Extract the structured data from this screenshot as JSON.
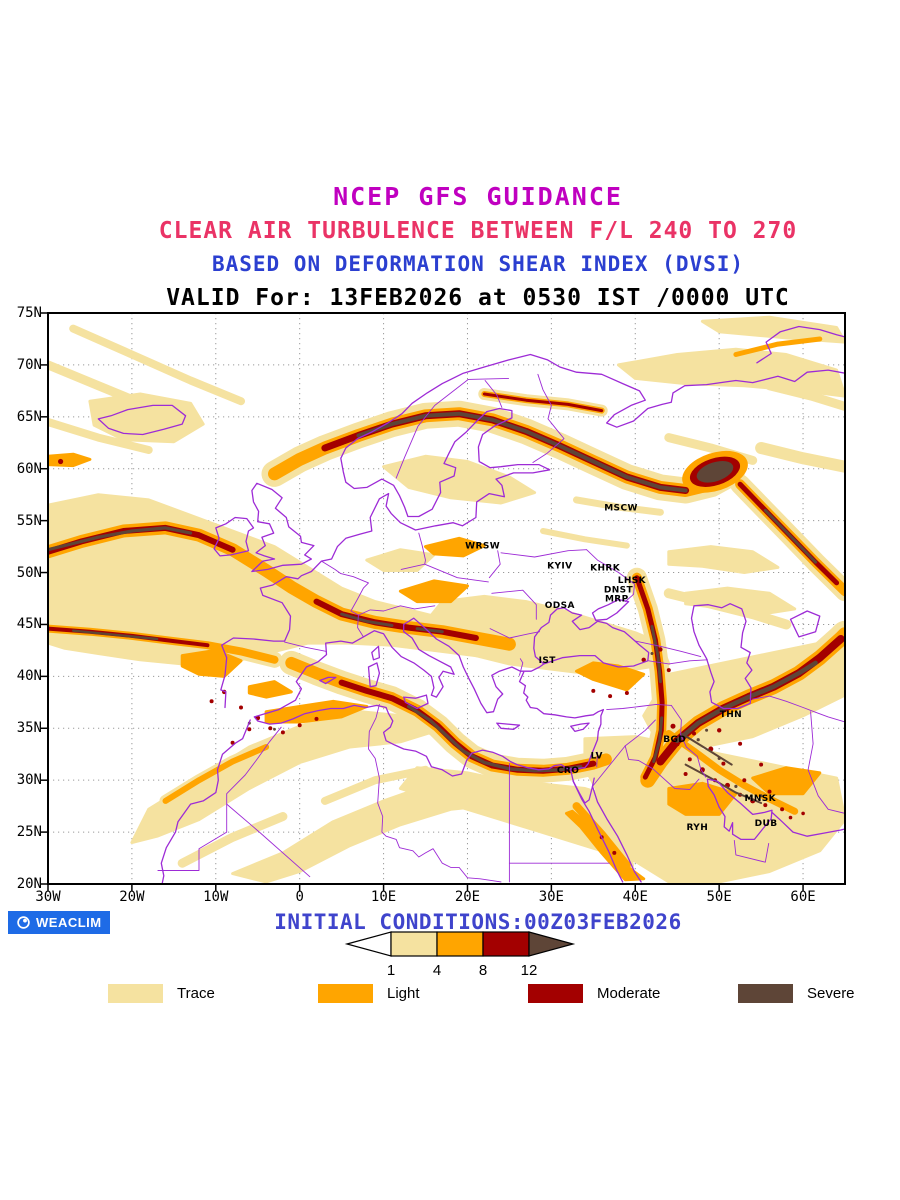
{
  "titles": {
    "line1": "NCEP GFS GUIDANCE",
    "line2": "CLEAR AIR TURBULENCE BETWEEN F/L 240 TO 270",
    "line3": "BASED ON DEFORMATION SHEAR INDEX (DVSI)",
    "line4": "VALID For: 13FEB2026 at 0530 IST /0000 UTC"
  },
  "colors": {
    "trace": "#F5E2A0",
    "light": "#FFA500",
    "moderate": "#A30000",
    "severe": "#5E4537",
    "coast": "#9D2BD6",
    "grid": "#9A9A9A",
    "frame": "#000000",
    "title1": "#C000C0",
    "title2": "#EA3366",
    "title3": "#2B3FD0",
    "title4": "#000000",
    "footer_blue": "#3F44CC",
    "badge_bg": "#1E6BE6",
    "badge_text": "#FFFFFF",
    "city_label": "#000000",
    "scale_outline": "#000000",
    "scale_left_fill": "#FFFFFF"
  },
  "map": {
    "lon_min": -30,
    "lon_max": 65,
    "lat_min": 20,
    "lat_max": 75,
    "x_ticks": [
      {
        "lon": -30,
        "label": "30W"
      },
      {
        "lon": -20,
        "label": "20W"
      },
      {
        "lon": -10,
        "label": "10W"
      },
      {
        "lon": 0,
        "label": "0"
      },
      {
        "lon": 10,
        "label": "10E"
      },
      {
        "lon": 20,
        "label": "20E"
      },
      {
        "lon": 30,
        "label": "30E"
      },
      {
        "lon": 40,
        "label": "40E"
      },
      {
        "lon": 50,
        "label": "50E"
      },
      {
        "lon": 60,
        "label": "60E"
      }
    ],
    "y_ticks": [
      {
        "lat": 75,
        "label": "75N"
      },
      {
        "lat": 70,
        "label": "70N"
      },
      {
        "lat": 65,
        "label": "65N"
      },
      {
        "lat": 60,
        "label": "60N"
      },
      {
        "lat": 55,
        "label": "55N"
      },
      {
        "lat": 50,
        "label": "50N"
      },
      {
        "lat": 45,
        "label": "45N"
      },
      {
        "lat": 40,
        "label": "40N"
      },
      {
        "lat": 35,
        "label": "35N"
      },
      {
        "lat": 30,
        "label": "30N"
      },
      {
        "lat": 25,
        "label": "25N"
      },
      {
        "lat": 20,
        "label": "20N"
      }
    ],
    "cities": [
      {
        "label": "MSCW",
        "lon": 38.3,
        "lat": 56.0
      },
      {
        "label": "WRSW",
        "lon": 21.8,
        "lat": 52.3
      },
      {
        "label": "KYIV",
        "lon": 31.0,
        "lat": 50.4
      },
      {
        "label": "KHRK",
        "lon": 36.4,
        "lat": 50.2
      },
      {
        "label": "LHSK",
        "lon": 39.6,
        "lat": 49.0
      },
      {
        "label": "DNST",
        "lon": 38.0,
        "lat": 48.1
      },
      {
        "label": "MRP",
        "lon": 37.8,
        "lat": 47.2
      },
      {
        "label": "ODSA",
        "lon": 31.0,
        "lat": 46.6
      },
      {
        "label": "IST",
        "lon": 29.5,
        "lat": 41.3
      },
      {
        "label": "LV",
        "lon": 35.4,
        "lat": 32.1
      },
      {
        "label": "CRO",
        "lon": 32.0,
        "lat": 30.7
      },
      {
        "label": "BGD",
        "lon": 44.7,
        "lat": 33.7
      },
      {
        "label": "THN",
        "lon": 51.4,
        "lat": 36.1
      },
      {
        "label": "RYH",
        "lon": 47.4,
        "lat": 25.2
      },
      {
        "label": "MNSK",
        "lon": 54.9,
        "lat": 28.0
      },
      {
        "label": "DUB",
        "lon": 55.6,
        "lat": 25.6
      }
    ]
  },
  "scale_bar": {
    "tick_labels": [
      "1",
      "4",
      "8",
      "12"
    ]
  },
  "legend": {
    "items": [
      {
        "label": "Trace",
        "color_key": "trace"
      },
      {
        "label": "Light",
        "color_key": "light"
      },
      {
        "label": "Moderate",
        "color_key": "moderate"
      },
      {
        "label": "Severe",
        "color_key": "severe"
      }
    ]
  },
  "footer": {
    "badge_label": "WEACLIM",
    "initial_conditions": "INITIAL CONDITIONS:00Z03FEB2026"
  }
}
